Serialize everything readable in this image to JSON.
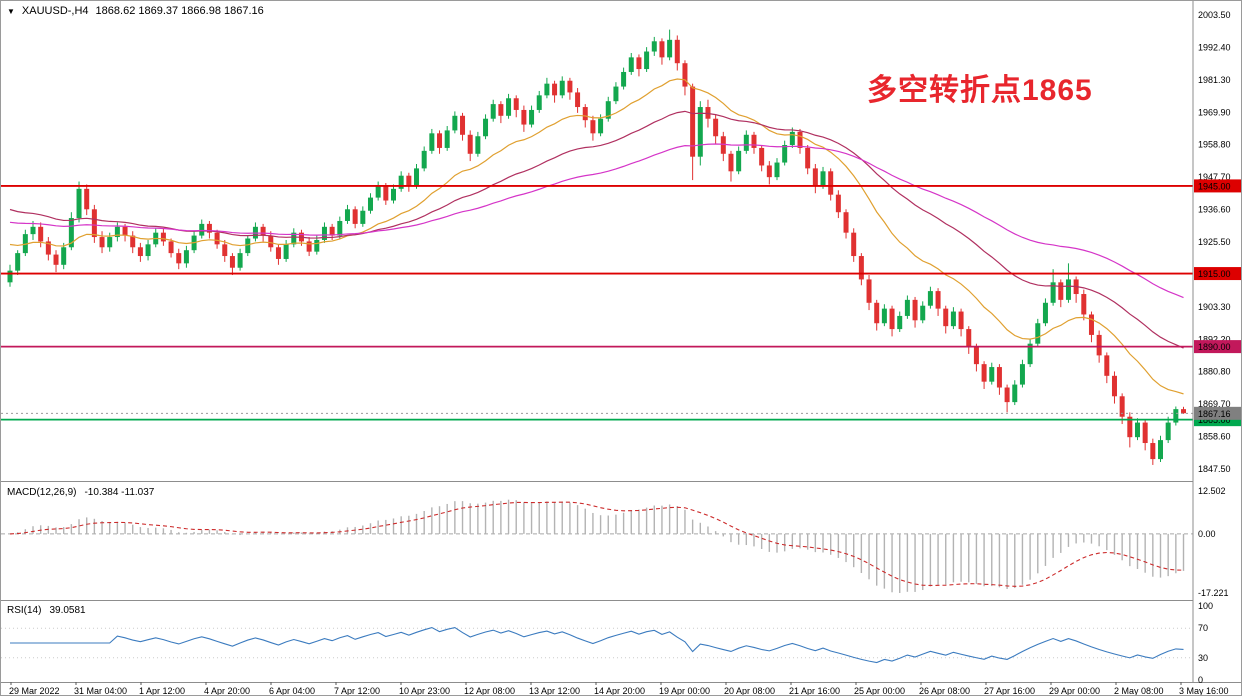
{
  "window": {
    "collapse_icon": "▼",
    "symbol_header": "XAUUSD-,H4",
    "ohlc": "1868.62 1869.37 1866.98 1867.16"
  },
  "annotation": {
    "text": "多空转折点1865",
    "color": "#e8262d"
  },
  "chart_data": {
    "type": "candlestick",
    "symbol": "XAUUSD-",
    "timeframe": "H4",
    "current_bar": {
      "open": 1868.62,
      "high": 1869.37,
      "low": 1866.98,
      "close": 1867.16
    },
    "ylim": [
      1843.4,
      2008.3
    ],
    "y_axis_labels": [
      "2003.50",
      "1992.40",
      "1981.30",
      "1969.90",
      "1958.80",
      "1947.70",
      "1936.60",
      "1925.50",
      "1914.40",
      "1903.30",
      "1892.20",
      "1880.80",
      "1869.70",
      "1858.60",
      "1847.50"
    ],
    "x_labels": [
      "29 Mar 2022",
      "31 Mar 04:00",
      "1 Apr 12:00",
      "4 Apr 20:00",
      "6 Apr 04:00",
      "7 Apr 12:00",
      "10 Apr 23:00",
      "12 Apr 08:00",
      "13 Apr 12:00",
      "14 Apr 20:00",
      "19 Apr 00:00",
      "20 Apr 08:00",
      "21 Apr 16:00",
      "25 Apr 00:00",
      "26 Apr 08:00",
      "27 Apr 16:00",
      "29 Apr 00:00",
      "2 May 08:00",
      "3 May 16:00"
    ],
    "colors": {
      "up": "#13a74e",
      "down": "#e03131"
    },
    "levels": [
      {
        "price": 1945.0,
        "label": "1945.00",
        "color": "#dd0000"
      },
      {
        "price": 1915.0,
        "label": "1915.00",
        "color": "#dd0000"
      },
      {
        "price": 1890.0,
        "label": "1890.00",
        "color": "#c2185b"
      },
      {
        "price": 1865.0,
        "label": "1865.00",
        "color": "#00a94f"
      }
    ],
    "current_price": {
      "value": 1867.16,
      "label": "1867.16",
      "color": "#808080"
    },
    "moving_averages": [
      {
        "name": "ma-fast-orange",
        "period": 18,
        "seed": 1926,
        "color": "#e0a030"
      },
      {
        "name": "ma-mid-maroon",
        "period": 40,
        "seed": 1938,
        "color": "#b03060"
      },
      {
        "name": "ma-slow-magenta",
        "period": 75,
        "seed": 1933,
        "color": "#d535c8"
      }
    ],
    "candles": [
      [
        1912,
        1918,
        1910.5,
        1916
      ],
      [
        1916,
        1923,
        1914.5,
        1922
      ],
      [
        1922,
        1930,
        1921,
        1928.5
      ],
      [
        1928.5,
        1933,
        1926.5,
        1931
      ],
      [
        1931,
        1932.5,
        1924,
        1926
      ],
      [
        1926,
        1927.5,
        1919.5,
        1921.5
      ],
      [
        1921.5,
        1923,
        1915.5,
        1918
      ],
      [
        1918,
        1925.5,
        1916.5,
        1924
      ],
      [
        1924,
        1936,
        1923,
        1934
      ],
      [
        1934,
        1946.5,
        1932.5,
        1944
      ],
      [
        1944,
        1945.5,
        1935,
        1937
      ],
      [
        1937,
        1938.5,
        1925.5,
        1927.5
      ],
      [
        1927.5,
        1929.5,
        1922,
        1924
      ],
      [
        1924,
        1929,
        1922.5,
        1927.5
      ],
      [
        1927.5,
        1932.5,
        1926,
        1931
      ],
      [
        1931,
        1932,
        1926,
        1928
      ],
      [
        1928,
        1929.5,
        1922,
        1924
      ],
      [
        1924,
        1925.5,
        1919,
        1921
      ],
      [
        1921,
        1926.5,
        1919.5,
        1925
      ],
      [
        1925,
        1930.5,
        1924,
        1929
      ],
      [
        1929,
        1930.5,
        1924.5,
        1926
      ],
      [
        1926,
        1927,
        1920.5,
        1922
      ],
      [
        1922,
        1923.5,
        1916.5,
        1918.5
      ],
      [
        1918.5,
        1924.5,
        1917,
        1923
      ],
      [
        1923,
        1929.5,
        1922,
        1928
      ],
      [
        1928,
        1933.5,
        1927,
        1932
      ],
      [
        1932,
        1933,
        1927,
        1929
      ],
      [
        1929,
        1930,
        1923.5,
        1925
      ],
      [
        1925,
        1926.5,
        1919,
        1921
      ],
      [
        1921,
        1922,
        1914.5,
        1917
      ],
      [
        1917,
        1923.5,
        1916,
        1922
      ],
      [
        1922,
        1928,
        1921,
        1927
      ],
      [
        1927,
        1932.5,
        1926,
        1931
      ],
      [
        1931,
        1932,
        1926,
        1928
      ],
      [
        1928,
        1929.5,
        1922.5,
        1924
      ],
      [
        1924,
        1925,
        1918,
        1920
      ],
      [
        1920,
        1926.5,
        1919,
        1925
      ],
      [
        1925,
        1930.5,
        1924,
        1929
      ],
      [
        1929,
        1930,
        1924.5,
        1926
      ],
      [
        1926,
        1927.5,
        1921,
        1922.5
      ],
      [
        1922.5,
        1928,
        1921.5,
        1926.5
      ],
      [
        1926.5,
        1932.5,
        1925.5,
        1931
      ],
      [
        1931,
        1932,
        1926.5,
        1928
      ],
      [
        1928,
        1934.5,
        1927,
        1933
      ],
      [
        1933,
        1938.5,
        1932,
        1937
      ],
      [
        1937,
        1938,
        1930.5,
        1932
      ],
      [
        1932,
        1938,
        1931,
        1936.5
      ],
      [
        1936.5,
        1942.5,
        1935.5,
        1941
      ],
      [
        1941,
        1946.5,
        1940,
        1945
      ],
      [
        1945,
        1946,
        1938.5,
        1940
      ],
      [
        1940,
        1945.5,
        1939,
        1944
      ],
      [
        1944,
        1950,
        1943,
        1948.5
      ],
      [
        1948.5,
        1949.5,
        1943,
        1945
      ],
      [
        1945,
        1952.5,
        1944,
        1951
      ],
      [
        1951,
        1958.5,
        1950,
        1957
      ],
      [
        1957,
        1964.5,
        1956,
        1963
      ],
      [
        1963,
        1964,
        1956,
        1958
      ],
      [
        1958,
        1965.5,
        1957,
        1964
      ],
      [
        1964,
        1970.5,
        1963,
        1969
      ],
      [
        1969,
        1970,
        1960.5,
        1962.5
      ],
      [
        1962.5,
        1964,
        1953.5,
        1956
      ],
      [
        1956,
        1963.5,
        1955,
        1962
      ],
      [
        1962,
        1969.5,
        1961,
        1968
      ],
      [
        1968,
        1974.5,
        1967,
        1973
      ],
      [
        1973,
        1974,
        1966.5,
        1969
      ],
      [
        1969,
        1976.5,
        1968,
        1975
      ],
      [
        1975,
        1976,
        1968.5,
        1971
      ],
      [
        1971,
        1972.5,
        1963.5,
        1966
      ],
      [
        1966,
        1972.5,
        1965,
        1971
      ],
      [
        1971,
        1977.5,
        1970,
        1976
      ],
      [
        1976,
        1982,
        1975,
        1980
      ],
      [
        1980,
        1981,
        1973.5,
        1976
      ],
      [
        1976,
        1982.5,
        1975,
        1981
      ],
      [
        1981,
        1982,
        1974.5,
        1977
      ],
      [
        1977,
        1978.5,
        1970,
        1972
      ],
      [
        1972,
        1973,
        1965,
        1967.5
      ],
      [
        1967.5,
        1969,
        1960.5,
        1963
      ],
      [
        1963,
        1969.5,
        1962,
        1968
      ],
      [
        1968,
        1975.5,
        1967,
        1974
      ],
      [
        1974,
        1980.5,
        1973,
        1979
      ],
      [
        1979,
        1985.5,
        1978,
        1984
      ],
      [
        1984,
        1990.5,
        1983,
        1989
      ],
      [
        1989,
        1990,
        1982.5,
        1985
      ],
      [
        1985,
        1992.5,
        1984,
        1991
      ],
      [
        1991,
        1996,
        1989.5,
        1994.5
      ],
      [
        1994.5,
        1995.5,
        1986.5,
        1989
      ],
      [
        1989,
        1998.5,
        1988,
        1995
      ],
      [
        1995,
        1996.5,
        1984.5,
        1987
      ],
      [
        1987,
        1988,
        1976,
        1979
      ],
      [
        1979,
        1980,
        1947,
        1955
      ],
      [
        1955,
        1974,
        1952,
        1972
      ],
      [
        1972,
        1974.5,
        1965,
        1968
      ],
      [
        1968,
        1969.5,
        1959.5,
        1962
      ],
      [
        1962,
        1963.5,
        1953.5,
        1956
      ],
      [
        1956,
        1957,
        1946.5,
        1950
      ],
      [
        1950,
        1958.5,
        1949,
        1957
      ],
      [
        1957,
        1964,
        1956,
        1962.5
      ],
      [
        1962.5,
        1963.5,
        1956,
        1958
      ],
      [
        1958,
        1959,
        1950,
        1952
      ],
      [
        1952,
        1953.5,
        1945.5,
        1948
      ],
      [
        1948,
        1954.5,
        1947,
        1953
      ],
      [
        1953,
        1960.5,
        1952,
        1959
      ],
      [
        1959,
        1965,
        1958,
        1963.5
      ],
      [
        1963.5,
        1964.5,
        1956,
        1958
      ],
      [
        1958,
        1959,
        1949,
        1951
      ],
      [
        1951,
        1952.5,
        1942.5,
        1945
      ],
      [
        1945,
        1951.5,
        1944,
        1950
      ],
      [
        1950,
        1951,
        1940,
        1942
      ],
      [
        1942,
        1943.5,
        1934,
        1936
      ],
      [
        1936,
        1937,
        1927,
        1929
      ],
      [
        1929,
        1930.5,
        1919,
        1921
      ],
      [
        1921,
        1922,
        1911,
        1913
      ],
      [
        1913,
        1914.5,
        1902.5,
        1905
      ],
      [
        1905,
        1906,
        1895.5,
        1898
      ],
      [
        1898,
        1904.5,
        1897,
        1903
      ],
      [
        1903,
        1904,
        1893.5,
        1896
      ],
      [
        1896,
        1902,
        1895,
        1900.5
      ],
      [
        1900.5,
        1907.5,
        1899.5,
        1906
      ],
      [
        1906,
        1907,
        1896.5,
        1899
      ],
      [
        1899,
        1905.5,
        1898,
        1904
      ],
      [
        1904,
        1910.5,
        1903,
        1909
      ],
      [
        1909,
        1910,
        1900.5,
        1903
      ],
      [
        1903,
        1904,
        1894.5,
        1897
      ],
      [
        1897,
        1903.5,
        1896,
        1902
      ],
      [
        1902,
        1903,
        1893.5,
        1896
      ],
      [
        1896,
        1897,
        1887.5,
        1890
      ],
      [
        1890,
        1891,
        1881.5,
        1884
      ],
      [
        1884,
        1885,
        1875.5,
        1878
      ],
      [
        1878,
        1884.5,
        1877,
        1883
      ],
      [
        1883,
        1884,
        1873.5,
        1876
      ],
      [
        1876,
        1877,
        1867.5,
        1871
      ],
      [
        1871,
        1878.5,
        1870,
        1877
      ],
      [
        1877,
        1885.5,
        1876,
        1884
      ],
      [
        1884,
        1892.5,
        1883,
        1891
      ],
      [
        1891,
        1899.5,
        1890,
        1898
      ],
      [
        1898,
        1906.5,
        1897,
        1905
      ],
      [
        1905,
        1916.5,
        1904,
        1912
      ],
      [
        1912,
        1913,
        1903.5,
        1906
      ],
      [
        1906,
        1918.5,
        1905,
        1913
      ],
      [
        1913,
        1914,
        1905,
        1908
      ],
      [
        1908,
        1909.5,
        1899,
        1901
      ],
      [
        1901,
        1902,
        1891.5,
        1894
      ],
      [
        1894,
        1895.5,
        1884.5,
        1887
      ],
      [
        1887,
        1888,
        1877.5,
        1880
      ],
      [
        1880,
        1881.5,
        1870.5,
        1873
      ],
      [
        1873,
        1874,
        1863.5,
        1866
      ],
      [
        1866,
        1867.5,
        1855.5,
        1859
      ],
      [
        1859,
        1865.5,
        1858,
        1864
      ],
      [
        1864,
        1865,
        1854.5,
        1857
      ],
      [
        1857,
        1858.5,
        1849.5,
        1851.5
      ],
      [
        1851.5,
        1859.5,
        1850.5,
        1858
      ],
      [
        1858,
        1866,
        1857,
        1864
      ],
      [
        1864,
        1869.5,
        1863,
        1868.6
      ],
      [
        1868.6,
        1869.4,
        1867,
        1867.2
      ]
    ],
    "indicators": {
      "macd": {
        "label": "MACD(12,26,9)",
        "values_text": "-10.384 -11.037",
        "fast": 12,
        "slow": 26,
        "signal": 9,
        "axis_labels": [
          "12.502",
          "0.00",
          "-17.221"
        ],
        "range": [
          12.502,
          -17.221
        ],
        "histogram_color": "#b3b3b3",
        "signal_color": "#cc2b2b"
      },
      "rsi": {
        "label": "RSI(14)",
        "value_text": "39.0581",
        "period": 14,
        "axis_labels": [
          "100",
          "70",
          "30",
          "0"
        ],
        "axis_values": [
          100,
          70,
          30,
          0
        ],
        "levels": [
          70,
          30
        ],
        "color": "#3b7bbf"
      }
    }
  }
}
